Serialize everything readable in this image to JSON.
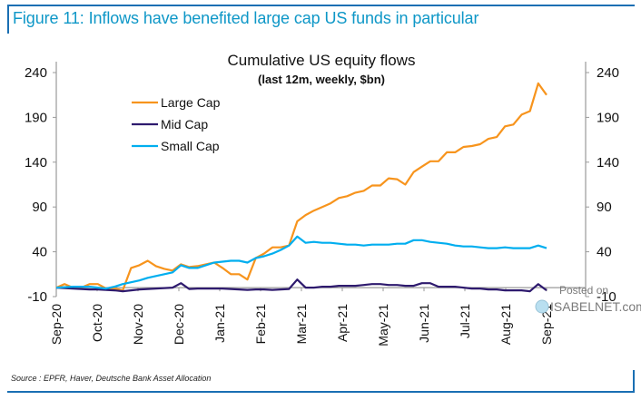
{
  "figure": {
    "title": "Figure 11: Inflows have benefited large cap US funds in particular",
    "source": "Source : EPFR, Haver, Deutsche Bank Asset Allocation"
  },
  "watermark": {
    "line1": "Posted on",
    "line2": "ISABELNET.com"
  },
  "chart_data": {
    "type": "line",
    "title": "Cumulative US equity flows",
    "subtitle": "(last 12m, weekly, $bn)",
    "xlabel": "",
    "ylabel": "",
    "ylim": [
      -10,
      240
    ],
    "yticks": [
      240,
      190,
      140,
      90,
      40,
      -10
    ],
    "yticks_right": [
      240,
      190,
      140,
      90,
      40,
      -10
    ],
    "x_tick_labels": [
      "Sep-20",
      "Oct-20",
      "Nov-20",
      "Dec-20",
      "Jan-21",
      "Feb-21",
      "Mar-21",
      "Apr-21",
      "May-21",
      "Jun-21",
      "Jul-21",
      "Aug-21",
      "Sep-21"
    ],
    "x_frequency": "weekly",
    "grid": false,
    "legend_position": "top-left",
    "series": [
      {
        "name": "Large Cap",
        "color": "#f7941d",
        "values": [
          0,
          4,
          0,
          0,
          4,
          4,
          -1,
          -1,
          -3,
          22,
          25,
          30,
          24,
          21,
          19,
          26,
          23,
          24,
          26,
          28,
          22,
          15,
          15,
          9,
          33,
          38,
          45,
          45,
          47,
          74,
          81,
          86,
          90,
          94,
          100,
          102,
          106,
          108,
          114,
          114,
          122,
          121,
          115,
          129,
          135,
          141,
          141,
          151,
          151,
          157,
          158,
          160,
          166,
          168,
          180,
          182,
          193,
          197,
          228,
          215
        ]
      },
      {
        "name": "Mid Cap",
        "color": "#2e1a6e",
        "values": [
          0,
          -0.5,
          -1,
          -1.5,
          -2,
          -2,
          -2.5,
          -3,
          -4,
          -3,
          -2,
          -1.5,
          -1,
          -0.5,
          0,
          5,
          -1.5,
          -1,
          -1,
          -1,
          -1,
          -1.5,
          -2,
          -2.5,
          -2,
          -2,
          -2.5,
          -2,
          -1.5,
          9,
          0,
          0,
          1,
          1,
          2,
          2,
          2,
          3,
          4,
          4,
          3,
          3,
          2,
          2,
          5,
          5,
          1,
          1,
          1,
          0,
          -1,
          -1,
          -2,
          -2,
          -3,
          -3,
          -3,
          -4,
          4,
          -3
        ]
      },
      {
        "name": "Small Cap",
        "color": "#00aeef",
        "values": [
          0,
          0.5,
          1,
          1,
          1,
          0,
          -1,
          1,
          4,
          6,
          8,
          11,
          13,
          15,
          17,
          25,
          22,
          22,
          25,
          28,
          29,
          30,
          30,
          28,
          33,
          35,
          38,
          42,
          47,
          57,
          50,
          51,
          50,
          50,
          49,
          48,
          48,
          47,
          48,
          48,
          48,
          49,
          49,
          53,
          53,
          51,
          50,
          49,
          47,
          46,
          46,
          45,
          44,
          44,
          45,
          44,
          44,
          44,
          47,
          44
        ]
      }
    ]
  }
}
